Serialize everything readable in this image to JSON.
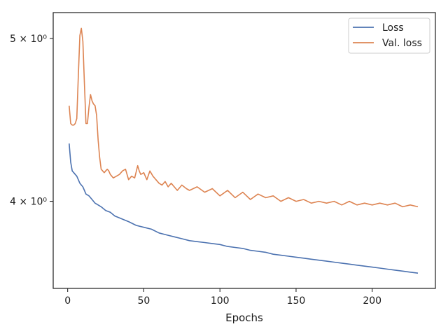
{
  "chart_data": {
    "type": "line",
    "xlabel": "Epochs",
    "ylabel": "",
    "xlim": [
      -9.5,
      241.5
    ],
    "ylim": [
      3.55,
      5.18
    ],
    "yscale": "log",
    "xticks": [
      0,
      50,
      100,
      150,
      200
    ],
    "xtick_labels": [
      "0",
      "50",
      "100",
      "150",
      "200"
    ],
    "yticks": [
      4.0,
      5.0
    ],
    "ytick_labels": [
      "4 × 10⁰",
      "5 × 10⁰"
    ],
    "grid": false,
    "legend_position": "top-right",
    "series": [
      {
        "name": "Loss",
        "color": "#4c72b0",
        "x": [
          1,
          2,
          3,
          4,
          5,
          6,
          7,
          8,
          9,
          10,
          11,
          12,
          14,
          16,
          18,
          20,
          22,
          25,
          28,
          31,
          34,
          37,
          40,
          45,
          50,
          55,
          60,
          65,
          70,
          75,
          80,
          85,
          90,
          95,
          100,
          105,
          110,
          115,
          120,
          125,
          130,
          135,
          140,
          145,
          150,
          155,
          160,
          165,
          170,
          175,
          180,
          185,
          190,
          195,
          200,
          205,
          210,
          215,
          220,
          225,
          230
        ],
        "y": [
          4.33,
          4.22,
          4.17,
          4.16,
          4.15,
          4.14,
          4.12,
          4.1,
          4.09,
          4.08,
          4.06,
          4.04,
          4.03,
          4.01,
          3.99,
          3.98,
          3.97,
          3.95,
          3.94,
          3.92,
          3.91,
          3.9,
          3.89,
          3.87,
          3.86,
          3.85,
          3.83,
          3.82,
          3.81,
          3.8,
          3.79,
          3.785,
          3.78,
          3.775,
          3.77,
          3.76,
          3.755,
          3.75,
          3.74,
          3.735,
          3.73,
          3.72,
          3.715,
          3.71,
          3.705,
          3.7,
          3.695,
          3.69,
          3.685,
          3.68,
          3.675,
          3.67,
          3.665,
          3.66,
          3.655,
          3.65,
          3.645,
          3.64,
          3.635,
          3.63,
          3.625
        ]
      },
      {
        "name": "Val. loss",
        "color": "#dd8452",
        "x": [
          1,
          2,
          3,
          4,
          5,
          6,
          7,
          8,
          9,
          10,
          11,
          12,
          13,
          14,
          15,
          16,
          17,
          18,
          19,
          20,
          21,
          22,
          23,
          24,
          25,
          26,
          27,
          28,
          29,
          30,
          32,
          34,
          36,
          38,
          39,
          40,
          41,
          42,
          44,
          46,
          47,
          48,
          50,
          52,
          54,
          56,
          58,
          60,
          62,
          64,
          66,
          68,
          70,
          72,
          75,
          78,
          80,
          85,
          90,
          95,
          100,
          105,
          110,
          115,
          120,
          125,
          130,
          135,
          140,
          145,
          150,
          155,
          160,
          165,
          170,
          175,
          180,
          185,
          190,
          195,
          200,
          205,
          210,
          215,
          220,
          225,
          230
        ],
        "y": [
          4.56,
          4.45,
          4.44,
          4.44,
          4.45,
          4.48,
          4.75,
          5.02,
          5.07,
          4.98,
          4.7,
          4.45,
          4.45,
          4.55,
          4.63,
          4.59,
          4.57,
          4.56,
          4.5,
          4.35,
          4.25,
          4.18,
          4.17,
          4.16,
          4.17,
          4.18,
          4.17,
          4.15,
          4.14,
          4.13,
          4.14,
          4.15,
          4.17,
          4.18,
          4.15,
          4.12,
          4.13,
          4.14,
          4.13,
          4.2,
          4.17,
          4.15,
          4.16,
          4.12,
          4.17,
          4.14,
          4.12,
          4.1,
          4.09,
          4.11,
          4.08,
          4.1,
          4.08,
          4.06,
          4.09,
          4.07,
          4.06,
          4.08,
          4.05,
          4.07,
          4.03,
          4.06,
          4.02,
          4.05,
          4.01,
          4.04,
          4.02,
          4.03,
          4.0,
          4.02,
          4.0,
          4.01,
          3.99,
          4.0,
          3.99,
          4.0,
          3.98,
          4.0,
          3.98,
          3.99,
          3.98,
          3.99,
          3.98,
          3.99,
          3.97,
          3.98,
          3.97
        ]
      }
    ]
  }
}
